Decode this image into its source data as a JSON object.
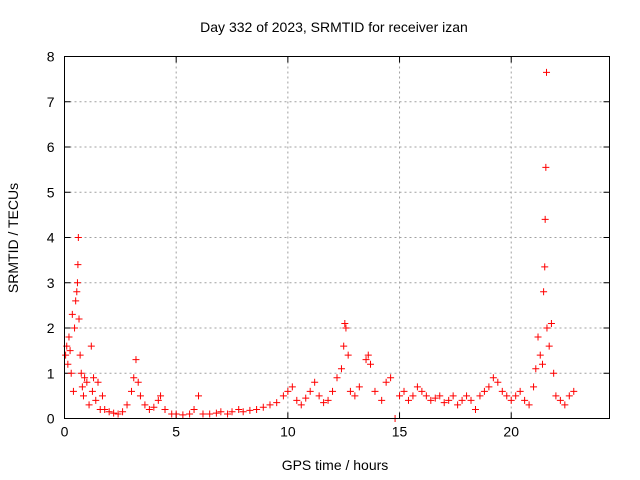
{
  "chart_data": {
    "type": "scatter",
    "title": "Day 332 of 2023, SRMTID for receiver izan",
    "xlabel": "GPS time / hours",
    "ylabel": "SRMTID / TECUs",
    "xlim": [
      0,
      24.4
    ],
    "ylim": [
      0,
      8
    ],
    "xticks": [
      0,
      5,
      10,
      15,
      20
    ],
    "yticks": [
      0,
      1,
      2,
      3,
      4,
      5,
      6,
      7,
      8
    ],
    "grid": true,
    "marker": "+",
    "color": "#ff0000",
    "series": [
      {
        "name": "SRMTID",
        "points": [
          [
            0.05,
            1.4
          ],
          [
            0.1,
            1.6
          ],
          [
            0.15,
            1.2
          ],
          [
            0.2,
            1.8
          ],
          [
            0.25,
            1.5
          ],
          [
            0.3,
            1.0
          ],
          [
            0.35,
            2.3
          ],
          [
            0.4,
            0.6
          ],
          [
            0.45,
            2.0
          ],
          [
            0.5,
            2.6
          ],
          [
            0.55,
            2.8
          ],
          [
            0.58,
            3.0
          ],
          [
            0.6,
            3.4
          ],
          [
            0.62,
            4.0
          ],
          [
            0.65,
            2.2
          ],
          [
            0.7,
            1.4
          ],
          [
            0.75,
            1.0
          ],
          [
            0.8,
            0.7
          ],
          [
            0.85,
            0.5
          ],
          [
            0.9,
            0.9
          ],
          [
            1.0,
            0.8
          ],
          [
            1.1,
            0.3
          ],
          [
            1.2,
            1.6
          ],
          [
            1.25,
            0.6
          ],
          [
            1.3,
            0.9
          ],
          [
            1.4,
            0.4
          ],
          [
            1.5,
            0.8
          ],
          [
            1.6,
            0.2
          ],
          [
            1.7,
            0.5
          ],
          [
            1.8,
            0.2
          ],
          [
            2.0,
            0.15
          ],
          [
            2.2,
            0.12
          ],
          [
            2.4,
            0.1
          ],
          [
            2.6,
            0.15
          ],
          [
            2.8,
            0.3
          ],
          [
            3.0,
            0.6
          ],
          [
            3.1,
            0.9
          ],
          [
            3.2,
            1.3
          ],
          [
            3.3,
            0.8
          ],
          [
            3.4,
            0.5
          ],
          [
            3.6,
            0.3
          ],
          [
            3.8,
            0.2
          ],
          [
            4.0,
            0.25
          ],
          [
            4.2,
            0.4
          ],
          [
            4.3,
            0.5
          ],
          [
            4.5,
            0.2
          ],
          [
            4.8,
            0.1
          ],
          [
            5.0,
            0.1
          ],
          [
            5.3,
            0.08
          ],
          [
            5.6,
            0.1
          ],
          [
            5.8,
            0.2
          ],
          [
            6.0,
            0.5
          ],
          [
            6.2,
            0.1
          ],
          [
            6.5,
            0.1
          ],
          [
            6.8,
            0.12
          ],
          [
            7.0,
            0.15
          ],
          [
            7.3,
            0.1
          ],
          [
            7.5,
            0.15
          ],
          [
            7.8,
            0.2
          ],
          [
            8.0,
            0.15
          ],
          [
            8.3,
            0.18
          ],
          [
            8.6,
            0.2
          ],
          [
            8.9,
            0.25
          ],
          [
            9.2,
            0.3
          ],
          [
            9.5,
            0.35
          ],
          [
            9.8,
            0.5
          ],
          [
            10.0,
            0.6
          ],
          [
            10.2,
            0.7
          ],
          [
            10.4,
            0.4
          ],
          [
            10.6,
            0.3
          ],
          [
            10.8,
            0.45
          ],
          [
            11.0,
            0.6
          ],
          [
            11.2,
            0.8
          ],
          [
            11.4,
            0.5
          ],
          [
            11.6,
            0.35
          ],
          [
            11.8,
            0.4
          ],
          [
            12.0,
            0.6
          ],
          [
            12.2,
            0.9
          ],
          [
            12.4,
            1.1
          ],
          [
            12.5,
            1.6
          ],
          [
            12.55,
            2.1
          ],
          [
            12.6,
            2.0
          ],
          [
            12.7,
            1.4
          ],
          [
            12.8,
            0.6
          ],
          [
            13.0,
            0.5
          ],
          [
            13.2,
            0.7
          ],
          [
            13.5,
            1.3
          ],
          [
            13.6,
            1.4
          ],
          [
            13.7,
            1.2
          ],
          [
            13.9,
            0.6
          ],
          [
            14.2,
            0.4
          ],
          [
            14.4,
            0.8
          ],
          [
            14.6,
            0.9
          ],
          [
            14.8,
            0.0
          ],
          [
            15.0,
            0.5
          ],
          [
            15.2,
            0.6
          ],
          [
            15.4,
            0.4
          ],
          [
            15.6,
            0.5
          ],
          [
            15.8,
            0.7
          ],
          [
            16.0,
            0.6
          ],
          [
            16.2,
            0.5
          ],
          [
            16.4,
            0.4
          ],
          [
            16.6,
            0.45
          ],
          [
            16.8,
            0.5
          ],
          [
            17.0,
            0.35
          ],
          [
            17.2,
            0.4
          ],
          [
            17.4,
            0.5
          ],
          [
            17.6,
            0.3
          ],
          [
            17.8,
            0.4
          ],
          [
            18.0,
            0.5
          ],
          [
            18.2,
            0.4
          ],
          [
            18.4,
            0.2
          ],
          [
            18.6,
            0.5
          ],
          [
            18.8,
            0.6
          ],
          [
            19.0,
            0.7
          ],
          [
            19.2,
            0.9
          ],
          [
            19.4,
            0.8
          ],
          [
            19.6,
            0.6
          ],
          [
            19.8,
            0.5
          ],
          [
            20.0,
            0.4
          ],
          [
            20.2,
            0.5
          ],
          [
            20.4,
            0.6
          ],
          [
            20.6,
            0.4
          ],
          [
            20.8,
            0.3
          ],
          [
            21.0,
            0.7
          ],
          [
            21.1,
            1.1
          ],
          [
            21.2,
            1.8
          ],
          [
            21.3,
            1.4
          ],
          [
            21.4,
            1.2
          ],
          [
            21.45,
            2.8
          ],
          [
            21.5,
            3.35
          ],
          [
            21.52,
            4.4
          ],
          [
            21.55,
            5.55
          ],
          [
            21.58,
            7.65
          ],
          [
            21.6,
            2.0
          ],
          [
            21.7,
            1.6
          ],
          [
            21.8,
            2.1
          ],
          [
            21.9,
            1.0
          ],
          [
            22.0,
            0.5
          ],
          [
            22.2,
            0.4
          ],
          [
            22.4,
            0.3
          ],
          [
            22.6,
            0.5
          ],
          [
            22.8,
            0.6
          ]
        ]
      }
    ]
  }
}
